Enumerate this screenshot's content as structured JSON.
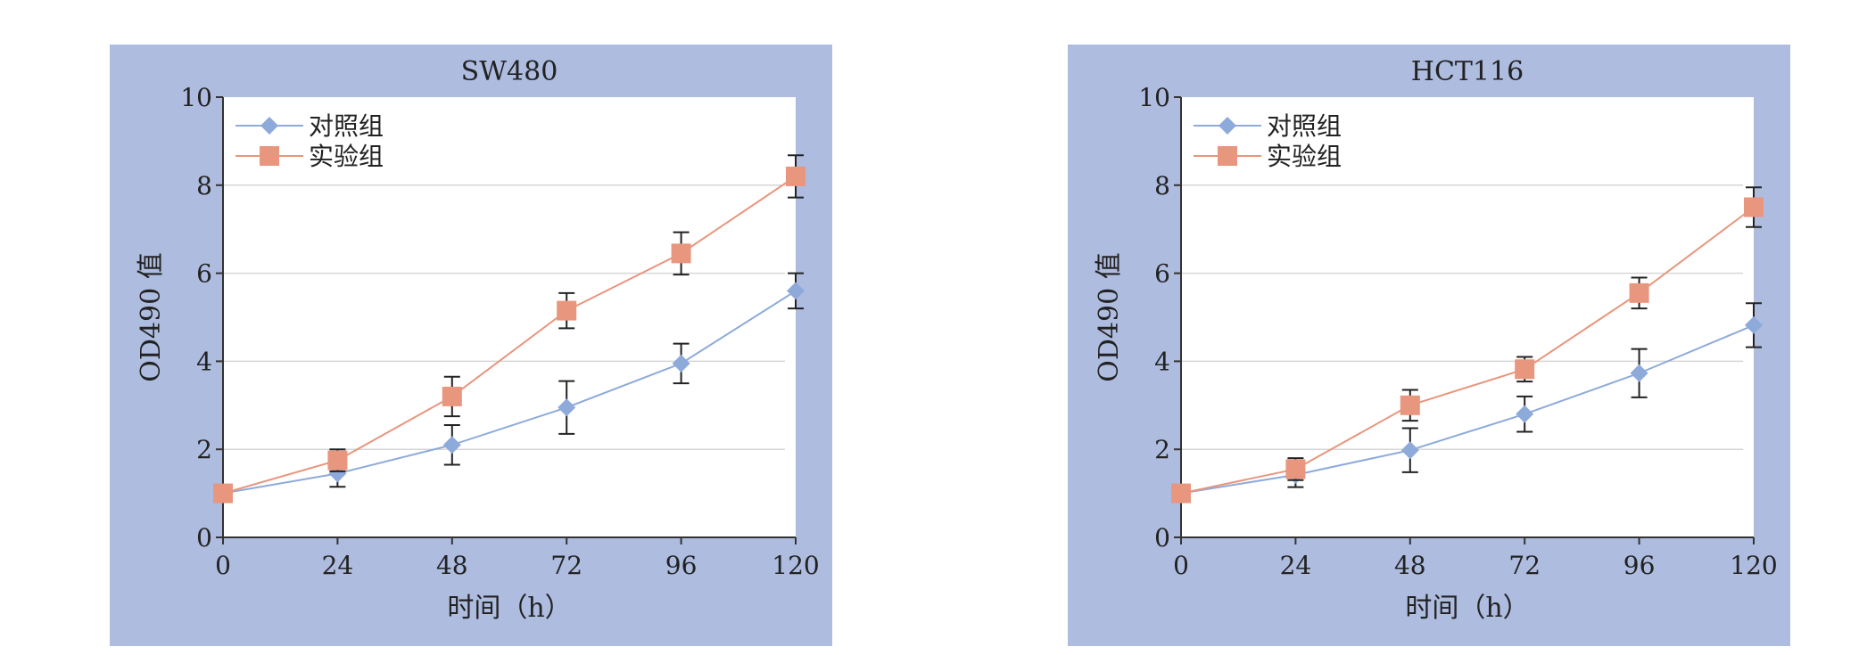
{
  "chart_data": [
    {
      "type": "line",
      "title": "SW480",
      "xlabel": "时间（h）",
      "ylabel": "OD490 值",
      "x": [
        0,
        24,
        48,
        72,
        96,
        120
      ],
      "xlim": [
        0,
        120
      ],
      "ylim": [
        0,
        10
      ],
      "yticks": [
        0,
        2,
        4,
        6,
        8,
        10
      ],
      "grid": true,
      "legend_position": "top-left",
      "series": [
        {
          "name": "对照组",
          "marker": "diamond",
          "color": "#8eaadb",
          "values": [
            1.0,
            1.45,
            2.1,
            2.95,
            3.95,
            5.6
          ],
          "error": [
            0.0,
            0.3,
            0.45,
            0.6,
            0.45,
            0.4
          ]
        },
        {
          "name": "实验组",
          "marker": "square",
          "color": "#e8967e",
          "values": [
            1.0,
            1.75,
            3.2,
            5.15,
            6.45,
            8.2
          ],
          "error": [
            0.0,
            0.25,
            0.45,
            0.4,
            0.48,
            0.48
          ]
        }
      ]
    },
    {
      "type": "line",
      "title": "HCT116",
      "xlabel": "时间（h）",
      "ylabel": "OD490 值",
      "x": [
        0,
        24,
        48,
        72,
        96,
        120
      ],
      "xlim": [
        0,
        120
      ],
      "ylim": [
        0,
        10
      ],
      "yticks": [
        0,
        2,
        4,
        6,
        8,
        10
      ],
      "grid": true,
      "legend_position": "top-left",
      "series": [
        {
          "name": "对照组",
          "marker": "diamond",
          "color": "#8eaadb",
          "values": [
            1.0,
            1.42,
            1.98,
            2.8,
            3.73,
            4.82
          ],
          "error": [
            0.0,
            0.28,
            0.5,
            0.4,
            0.55,
            0.5
          ]
        },
        {
          "name": "实验组",
          "marker": "square",
          "color": "#e8967e",
          "values": [
            1.0,
            1.55,
            3.0,
            3.82,
            5.55,
            7.5
          ],
          "error": [
            0.0,
            0.25,
            0.35,
            0.28,
            0.35,
            0.45
          ]
        }
      ]
    }
  ]
}
